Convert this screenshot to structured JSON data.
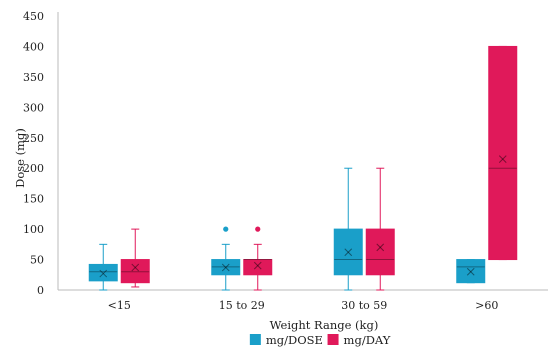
{
  "chart_data": {
    "type": "box",
    "xlabel": "Weight Range (kg)",
    "ylabel": "Dose (mg)",
    "ylim": [
      0,
      450
    ],
    "yticks": [
      0,
      50,
      100,
      150,
      200,
      250,
      300,
      350,
      400,
      450
    ],
    "categories": [
      "<15",
      "15 to 29",
      "30 to 59",
      ">60"
    ],
    "grid": false,
    "legend_position": "bottom",
    "series": [
      {
        "name": "mg/DOSE",
        "color": "#1a9fc9",
        "boxes": [
          {
            "min": 0,
            "q1": 15,
            "median": 30,
            "q3": 42,
            "max": 75,
            "mean": 27,
            "outliers": []
          },
          {
            "min": 0,
            "q1": 25,
            "median": 38,
            "q3": 50,
            "max": 75,
            "mean": 37,
            "outliers": [
              100
            ]
          },
          {
            "min": 0,
            "q1": 25,
            "median": 50,
            "q3": 100,
            "max": 200,
            "mean": 62,
            "outliers": []
          },
          {
            "min": 12,
            "q1": 12,
            "median": 38,
            "q3": 50,
            "max": 50,
            "mean": 30,
            "outliers": []
          }
        ]
      },
      {
        "name": "mg/DAY",
        "color": "#e0195a",
        "boxes": [
          {
            "min": 5,
            "q1": 12,
            "median": 30,
            "q3": 50,
            "max": 100,
            "mean": 37,
            "outliers": []
          },
          {
            "min": 0,
            "q1": 25,
            "median": 50,
            "q3": 50,
            "max": 75,
            "mean": 40,
            "outliers": [
              100
            ]
          },
          {
            "min": 0,
            "q1": 25,
            "median": 50,
            "q3": 100,
            "max": 200,
            "mean": 70,
            "outliers": []
          },
          {
            "min": 50,
            "q1": 50,
            "median": 200,
            "q3": 400,
            "max": 400,
            "mean": 215,
            "outliers": []
          }
        ]
      }
    ]
  }
}
